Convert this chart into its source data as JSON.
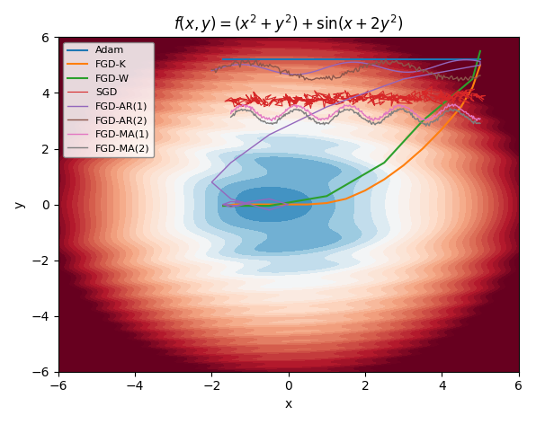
{
  "title": "$f(x, y) = (x^2 + y^2) + \\sin(x + 2y^2)$",
  "xlim": [
    -6,
    6
  ],
  "ylim": [
    -6,
    6
  ],
  "xlabel": "x",
  "ylabel": "y",
  "colormap": "RdBu_r",
  "contour_levels": 30,
  "legend_entries": [
    "Adam",
    "FGD-K",
    "FGD-W",
    "SGD",
    "FGD-AR(1)",
    "FGD-AR(2)",
    "FGD-MA(1)",
    "FGD-MA(2)"
  ],
  "line_colors": {
    "Adam": "#1f77b4",
    "FGD-K": "#ff7f0e",
    "FGD-W": "#2ca02c",
    "SGD": "#d62728",
    "FGD-AR1": "#9467bd",
    "FGD-AR2": "#8c564b",
    "FGD-MA1": "#e377c2",
    "FGD-MA2": "#7f7f7f"
  }
}
